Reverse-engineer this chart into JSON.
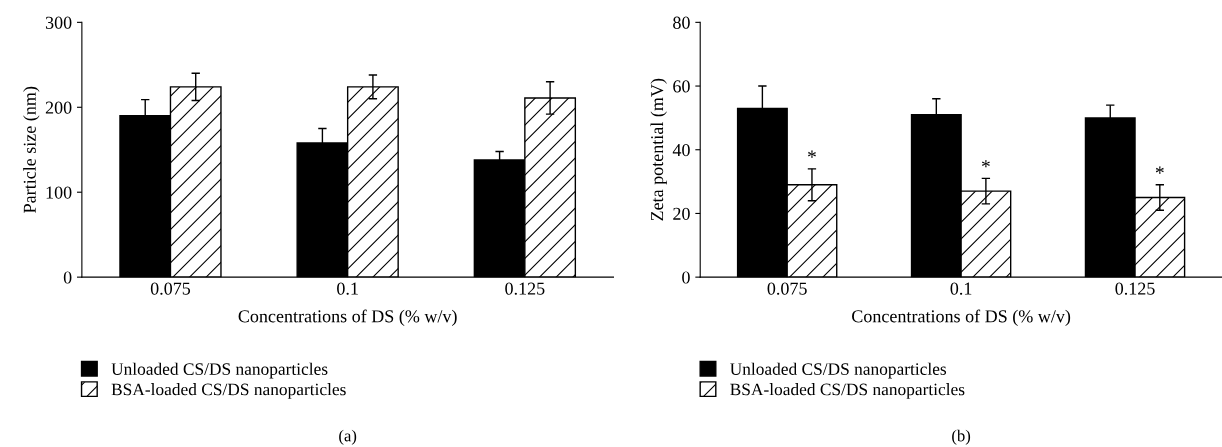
{
  "chart_data": [
    {
      "type": "bar",
      "xlabel": "Concentrations of DS (% w/v)",
      "ylabel": "Particle size (nm)",
      "categories": [
        "0.075",
        "0.1",
        "0.125"
      ],
      "ylim": [
        0,
        300
      ],
      "yticks": [
        0,
        100,
        200,
        300
      ],
      "legend": "bottom",
      "grid": false,
      "series": [
        {
          "name": "Unloaded CS/DS nanoparticles",
          "color": "#000000",
          "values": [
            190,
            158,
            138
          ],
          "errors": [
            19,
            17,
            10
          ]
        },
        {
          "name": "BSA-loaded CS/DS nanoparticles",
          "color": "#ffffff",
          "values": [
            224,
            224,
            211
          ],
          "errors": [
            16,
            14,
            19
          ]
        }
      ],
      "annotations": [
        "(a)"
      ]
    },
    {
      "type": "bar",
      "xlabel": "Concentrations of DS (% w/v)",
      "ylabel": "Zeta potential (mV)",
      "categories": [
        "0.075",
        "0.1",
        "0.125"
      ],
      "ylim": [
        0,
        80
      ],
      "yticks": [
        0,
        20,
        40,
        60,
        80
      ],
      "legend": "bottom",
      "grid": false,
      "series": [
        {
          "name": "Unloaded CS/DS nanoparticles",
          "color": "#000000",
          "values": [
            53,
            51,
            50
          ],
          "errors": [
            7,
            5,
            4
          ]
        },
        {
          "name": "BSA-loaded CS/DS nanoparticles",
          "color": "#ffffff",
          "values": [
            29,
            27,
            25
          ],
          "errors": [
            5,
            4,
            4
          ]
        }
      ],
      "annotations": [
        {
          "text": "*",
          "x": "0.075",
          "y": 34
        },
        {
          "text": "*",
          "x": "0.1",
          "y": 31
        },
        {
          "text": "*",
          "x": "0.125",
          "y": 29
        },
        "(b)"
      ]
    }
  ]
}
